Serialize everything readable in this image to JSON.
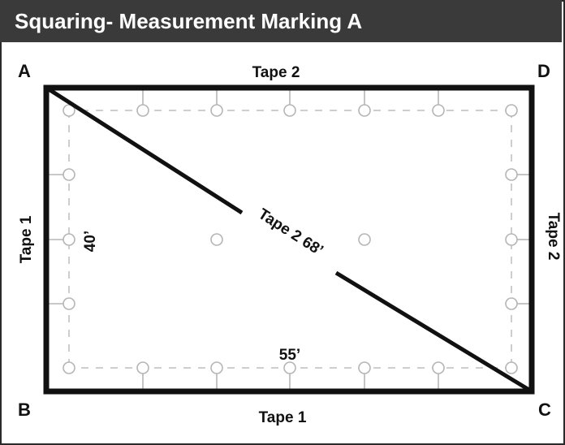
{
  "title": "Squaring- Measurement Marking A",
  "corners": {
    "a": "A",
    "b": "B",
    "c": "C",
    "d": "D"
  },
  "edge_labels": {
    "top": "Tape 2",
    "bottom": "Tape 1",
    "left": "Tape 1",
    "right": "Tape 2"
  },
  "diagonal_label": "Tape 2 68’",
  "dimensions": {
    "width": "55’",
    "height": "40’"
  },
  "colors": {
    "title_bar": "#3a3a3a",
    "outline": "#111111",
    "dashed_line": "#c8c8c8",
    "marker": "#b5b5b5"
  }
}
